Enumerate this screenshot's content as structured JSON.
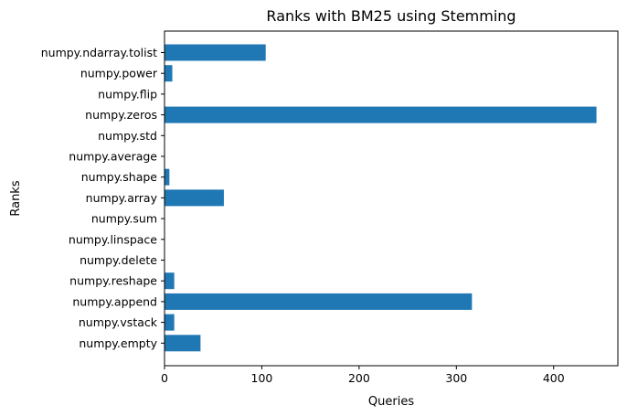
{
  "chart_data": {
    "type": "bar",
    "orientation": "horizontal",
    "title": "Ranks with BM25 using Stemming",
    "xlabel": "Queries",
    "ylabel": "Ranks",
    "categories": [
      "numpy.ndarray.tolist",
      "numpy.power",
      "numpy.flip",
      "numpy.zeros",
      "numpy.std",
      "numpy.average",
      "numpy.shape",
      "numpy.array",
      "numpy.sum",
      "numpy.linspace",
      "numpy.delete",
      "numpy.reshape",
      "numpy.append",
      "numpy.vstack",
      "numpy.empty"
    ],
    "values": [
      104,
      8,
      0,
      444,
      0,
      0,
      5,
      61,
      0,
      0,
      0,
      10,
      316,
      10,
      37
    ],
    "xlim": [
      0,
      466
    ],
    "xticks": [
      0,
      100,
      200,
      300,
      400
    ],
    "grid": false,
    "bar_color": "#1f77b4"
  }
}
